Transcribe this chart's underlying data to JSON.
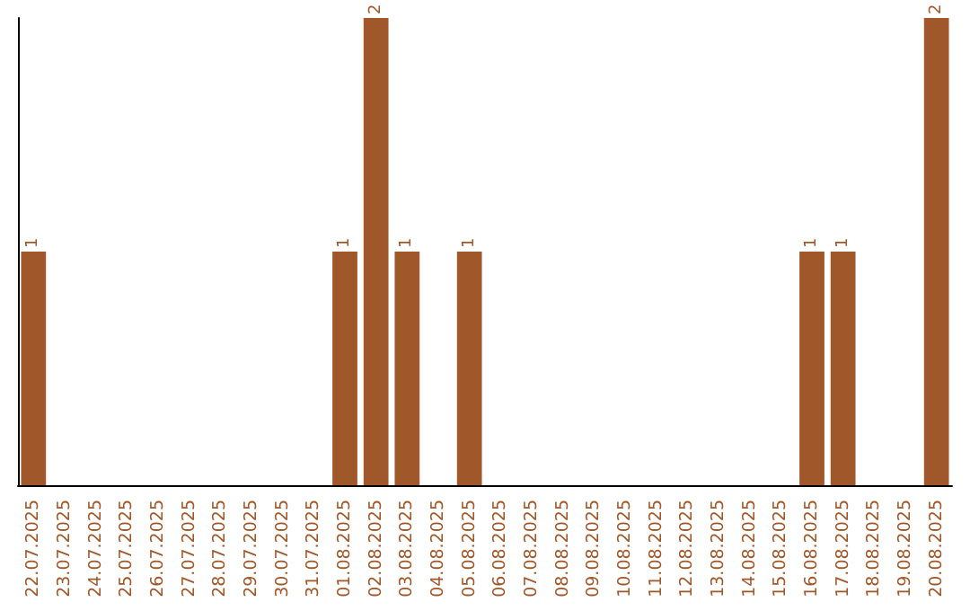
{
  "chart_data": {
    "type": "bar",
    "categories": [
      "22.07.2025",
      "23.07.2025",
      "24.07.2025",
      "25.07.2025",
      "26.07.2025",
      "27.07.2025",
      "28.07.2025",
      "29.07.2025",
      "30.07.2025",
      "31.07.2025",
      "01.08.2025",
      "02.08.2025",
      "03.08.2025",
      "04.08.2025",
      "05.08.2025",
      "06.08.2025",
      "07.08.2025",
      "08.08.2025",
      "09.08.2025",
      "10.08.2025",
      "11.08.2025",
      "12.08.2025",
      "13.08.2025",
      "14.08.2025",
      "15.08.2025",
      "16.08.2025",
      "17.08.2025",
      "18.08.2025",
      "19.08.2025",
      "20.08.2025"
    ],
    "values": [
      1,
      0,
      0,
      0,
      0,
      0,
      0,
      0,
      0,
      0,
      1,
      2,
      1,
      0,
      1,
      0,
      0,
      0,
      0,
      0,
      0,
      0,
      0,
      0,
      0,
      1,
      1,
      0,
      0,
      2
    ],
    "value_labels": [
      "1",
      null,
      null,
      null,
      null,
      null,
      null,
      null,
      null,
      null,
      "1",
      "2",
      "1",
      null,
      "1",
      null,
      null,
      null,
      null,
      null,
      null,
      null,
      null,
      null,
      null,
      "1",
      "1",
      null,
      null,
      "2"
    ],
    "color": "#a0572a",
    "grid": false,
    "tick_labels": "x"
  }
}
